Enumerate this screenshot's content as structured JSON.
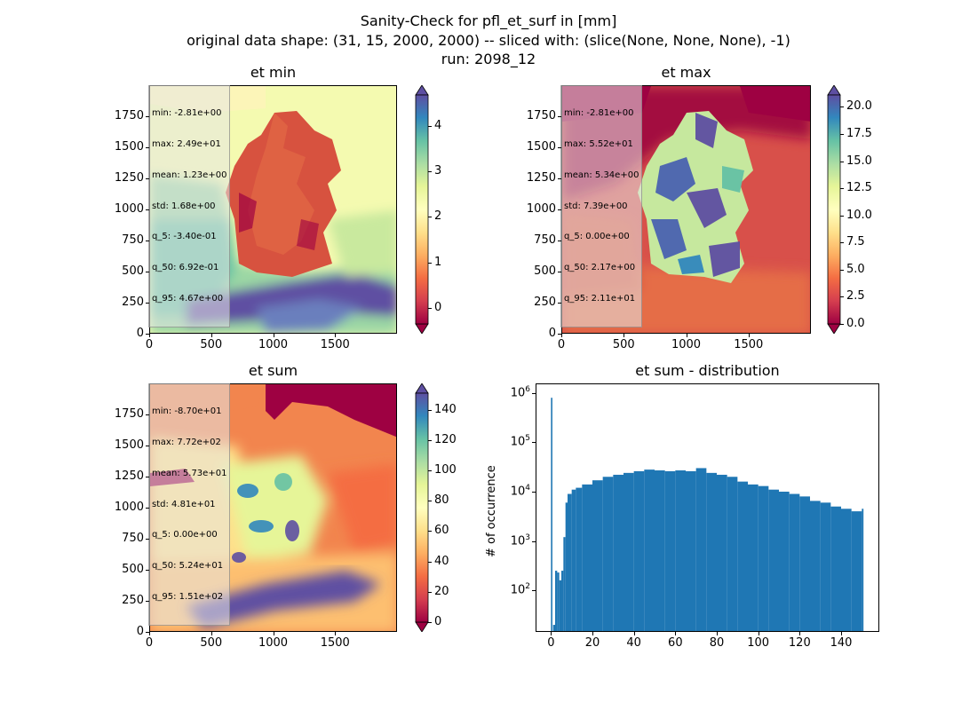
{
  "figure": {
    "title_line1": "Sanity-Check for pfl_et_surf in [mm]",
    "title_line2": "original data shape: (31, 15, 2000, 2000) -- sliced with: (slice(None, None, None), -1)",
    "title_line3": "run: 2098_12"
  },
  "panels": {
    "et_min": {
      "title": "et min",
      "stats": [
        "min: -2.81e+00",
        "max: 2.49e+01",
        "mean: 1.23e+00",
        "std: 1.68e+00",
        "q_5: -3.40e-01",
        "q_50: 6.92e-01",
        "q_95: 4.67e+00"
      ],
      "xticks": [
        "0",
        "500",
        "1000",
        "1500"
      ],
      "yticks": [
        "0",
        "250",
        "500",
        "750",
        "1000",
        "1250",
        "1500",
        "1750"
      ],
      "colorbar_ticks": [
        "0",
        "1",
        "2",
        "3",
        "4"
      ],
      "colorbar_range": [
        -0.34,
        4.67
      ]
    },
    "et_max": {
      "title": "et max",
      "stats": [
        "min: -2.81e+00",
        "max: 5.52e+01",
        "mean: 5.34e+00",
        "std: 7.39e+00",
        "q_5: 0.00e+00",
        "q_50: 2.17e+00",
        "q_95: 2.11e+01"
      ],
      "xticks": [
        "0",
        "500",
        "1000",
        "1500"
      ],
      "yticks": [
        "0",
        "250",
        "500",
        "750",
        "1000",
        "1250",
        "1500",
        "1750"
      ],
      "colorbar_ticks": [
        "0.0",
        "2.5",
        "5.0",
        "7.5",
        "10.0",
        "12.5",
        "15.0",
        "17.5",
        "20.0"
      ],
      "colorbar_range": [
        0.0,
        21.1
      ]
    },
    "et_sum": {
      "title": "et sum",
      "stats": [
        "min: -8.70e+01",
        "max: 7.72e+02",
        "mean: 5.73e+01",
        "std: 4.81e+01",
        "q_5: 0.00e+00",
        "q_50: 5.24e+01",
        "q_95: 1.51e+02"
      ],
      "xticks": [
        "0",
        "500",
        "1000",
        "1500"
      ],
      "yticks": [
        "0",
        "250",
        "500",
        "750",
        "1000",
        "1250",
        "1500",
        "1750"
      ],
      "colorbar_ticks": [
        "0",
        "20",
        "40",
        "60",
        "80",
        "100",
        "120",
        "140"
      ],
      "colorbar_range": [
        0,
        151
      ]
    },
    "hist": {
      "title": "et sum - distribution",
      "ylabel": "# of occurrence",
      "xticks": [
        "0",
        "20",
        "40",
        "60",
        "80",
        "100",
        "120",
        "140"
      ],
      "yticks": [
        {
          "base": "10",
          "exp": "2"
        },
        {
          "base": "10",
          "exp": "3"
        },
        {
          "base": "10",
          "exp": "4"
        },
        {
          "base": "10",
          "exp": "5"
        },
        {
          "base": "10",
          "exp": "6"
        }
      ]
    }
  },
  "chart_data": {
    "type": "bar",
    "title": "et sum - distribution",
    "xlabel": "",
    "ylabel": "# of occurrence",
    "yscale": "log",
    "xlim": [
      -7,
      158
    ],
    "ylim": [
      15,
      1500000
    ],
    "x": [
      0,
      1,
      2,
      3,
      4,
      5,
      6,
      7,
      8,
      10,
      12,
      15,
      20,
      25,
      30,
      35,
      40,
      45,
      50,
      55,
      60,
      65,
      70,
      75,
      80,
      85,
      90,
      95,
      100,
      105,
      110,
      115,
      120,
      125,
      130,
      135,
      140,
      145,
      150
    ],
    "values": [
      800000,
      20,
      250,
      230,
      160,
      250,
      1200,
      6000,
      9000,
      11000,
      12000,
      14000,
      17000,
      20000,
      22000,
      24000,
      26000,
      28000,
      27000,
      26000,
      27000,
      26000,
      30000,
      24000,
      22000,
      20000,
      16000,
      14000,
      13000,
      11000,
      10000,
      9000,
      8000,
      6500,
      6000,
      5000,
      4500,
      4000,
      4500
    ],
    "color": "#1f77b4"
  },
  "colors": {
    "hist_bar": "#1f77b4",
    "axis": "#000000"
  }
}
